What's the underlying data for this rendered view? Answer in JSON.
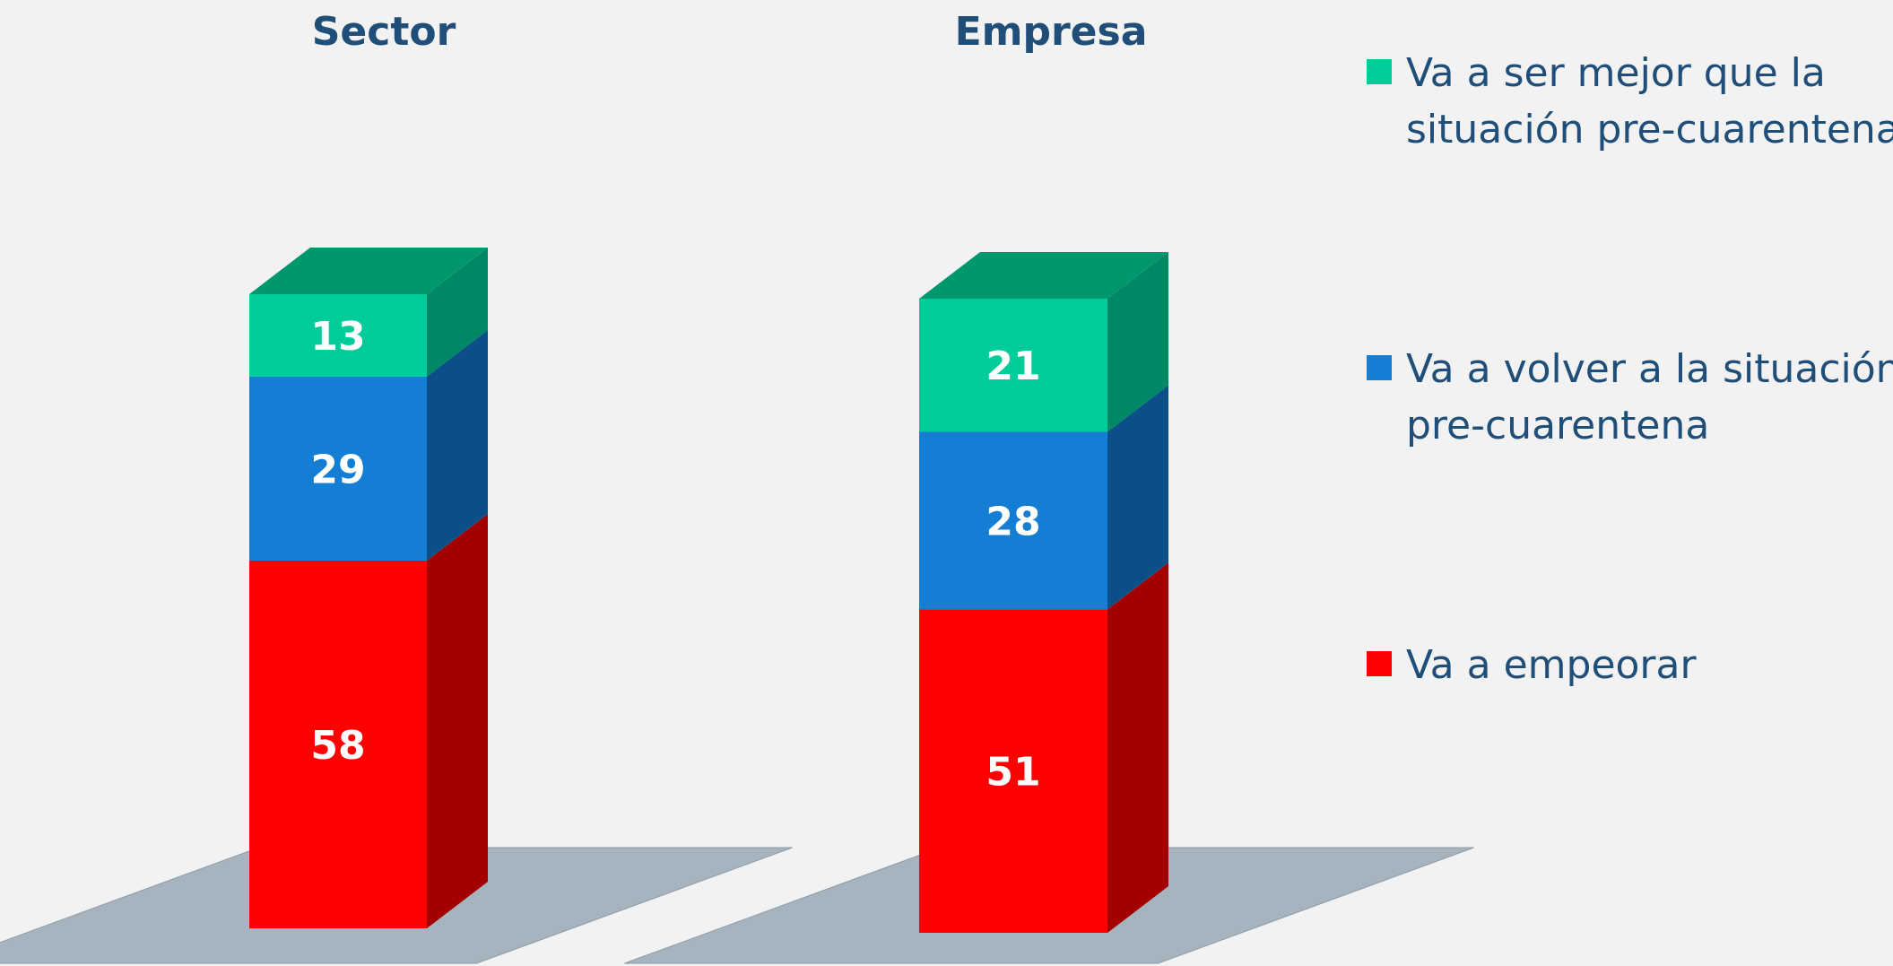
{
  "chart_data": {
    "type": "bar",
    "stacked": true,
    "three_d": true,
    "categories": [
      "Sector",
      "Empresa"
    ],
    "series": [
      {
        "name": "Va a ser mejor que la situación pre-cuarentena",
        "legend_lines": [
          "Va a ser mejor que la",
          "situación pre-cuarentena"
        ],
        "values": [
          13,
          21
        ],
        "color": "#00cc99",
        "top_color": "#00966e",
        "side_color": "#008866"
      },
      {
        "name": "Va a volver a la situación pre-cuarentena",
        "legend_lines": [
          "Va a volver a la situación",
          "pre-cuarentena"
        ],
        "values": [
          29,
          28
        ],
        "color": "#137ed3",
        "top_color": "#0d5fa3",
        "side_color": "#0b4f88"
      },
      {
        "name": "Va a empeorar",
        "legend_lines": [
          "Va a empeorar"
        ],
        "values": [
          58,
          51
        ],
        "color": "#ff0000",
        "top_color": "#b00000",
        "side_color": "#a30000"
      }
    ],
    "legend_position": "right",
    "grid": false,
    "floor_color": "#a6b4bf",
    "title_color": "#1f4e79"
  }
}
